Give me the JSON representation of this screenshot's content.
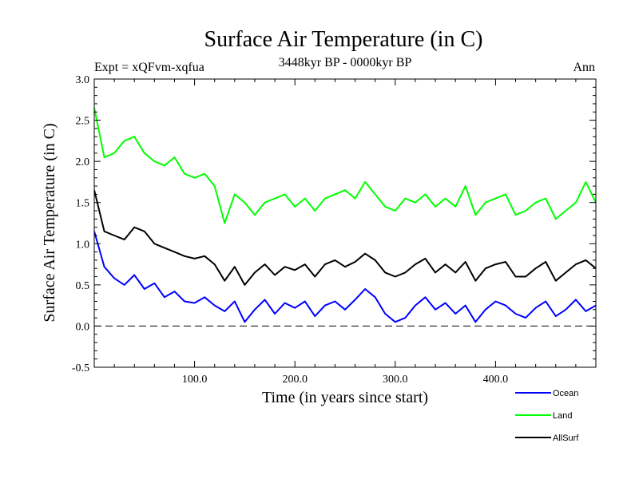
{
  "chart_data": {
    "type": "line",
    "title": "Surface Air Temperature (in C)",
    "subtitle": "3448kyr BP - 0000kyr BP",
    "experiment": "Expt = xQFvm-xqfua",
    "period": "Ann",
    "xlabel": "Time (in years since start)",
    "ylabel": "Surface Air Temperature (in C)",
    "xlim": [
      0,
      500
    ],
    "ylim": [
      -0.5,
      3.0
    ],
    "xticks": [
      100,
      200,
      300,
      400
    ],
    "xtick_labels": [
      "100.0",
      "200.0",
      "300.0",
      "400.0"
    ],
    "yticks": [
      -0.5,
      0.0,
      0.5,
      1.0,
      1.5,
      2.0,
      2.5,
      3.0
    ],
    "ytick_labels": [
      "-0.5",
      "0.0",
      "0.5",
      "1.0",
      "1.5",
      "2.0",
      "2.5",
      "3.0"
    ],
    "reference_line": {
      "y": 0.0,
      "style": "dashed"
    },
    "legend_position": "bottom-right",
    "series": [
      {
        "name": "Ocean",
        "color": "#0000ff",
        "x": [
          0,
          10,
          20,
          30,
          40,
          50,
          60,
          70,
          80,
          90,
          100,
          110,
          120,
          130,
          140,
          150,
          160,
          170,
          180,
          190,
          200,
          210,
          220,
          230,
          240,
          250,
          260,
          270,
          280,
          290,
          300,
          310,
          320,
          330,
          340,
          350,
          360,
          370,
          380,
          390,
          400,
          410,
          420,
          430,
          440,
          450,
          460,
          470,
          480,
          490,
          500
        ],
        "values": [
          1.15,
          0.72,
          0.58,
          0.5,
          0.62,
          0.45,
          0.52,
          0.35,
          0.42,
          0.3,
          0.28,
          0.35,
          0.25,
          0.18,
          0.3,
          0.05,
          0.2,
          0.32,
          0.15,
          0.28,
          0.22,
          0.3,
          0.12,
          0.25,
          0.3,
          0.2,
          0.32,
          0.45,
          0.35,
          0.15,
          0.05,
          0.1,
          0.25,
          0.35,
          0.2,
          0.28,
          0.15,
          0.25,
          0.05,
          0.2,
          0.3,
          0.25,
          0.15,
          0.1,
          0.22,
          0.3,
          0.12,
          0.2,
          0.32,
          0.18,
          0.25
        ]
      },
      {
        "name": "Land",
        "color": "#00ff00",
        "x": [
          0,
          10,
          20,
          30,
          40,
          50,
          60,
          70,
          80,
          90,
          100,
          110,
          120,
          130,
          140,
          150,
          160,
          170,
          180,
          190,
          200,
          210,
          220,
          230,
          240,
          250,
          260,
          270,
          280,
          290,
          300,
          310,
          320,
          330,
          340,
          350,
          360,
          370,
          380,
          390,
          400,
          410,
          420,
          430,
          440,
          450,
          460,
          470,
          480,
          490,
          500
        ],
        "values": [
          2.65,
          2.05,
          2.1,
          2.25,
          2.3,
          2.1,
          2.0,
          1.95,
          2.05,
          1.85,
          1.8,
          1.85,
          1.7,
          1.25,
          1.6,
          1.5,
          1.35,
          1.5,
          1.55,
          1.6,
          1.45,
          1.55,
          1.4,
          1.55,
          1.6,
          1.65,
          1.55,
          1.75,
          1.6,
          1.45,
          1.4,
          1.55,
          1.5,
          1.6,
          1.45,
          1.55,
          1.45,
          1.7,
          1.35,
          1.5,
          1.55,
          1.6,
          1.35,
          1.4,
          1.5,
          1.55,
          1.3,
          1.4,
          1.5,
          1.75,
          1.5
        ]
      },
      {
        "name": "AllSurf",
        "color": "#000000",
        "x": [
          0,
          10,
          20,
          30,
          40,
          50,
          60,
          70,
          80,
          90,
          100,
          110,
          120,
          130,
          140,
          150,
          160,
          170,
          180,
          190,
          200,
          210,
          220,
          230,
          240,
          250,
          260,
          270,
          280,
          290,
          300,
          310,
          320,
          330,
          340,
          350,
          360,
          370,
          380,
          390,
          400,
          410,
          420,
          430,
          440,
          450,
          460,
          470,
          480,
          490,
          500
        ],
        "values": [
          1.65,
          1.15,
          1.1,
          1.05,
          1.2,
          1.15,
          1.0,
          0.95,
          0.9,
          0.85,
          0.82,
          0.85,
          0.75,
          0.55,
          0.72,
          0.5,
          0.65,
          0.75,
          0.62,
          0.72,
          0.68,
          0.75,
          0.6,
          0.75,
          0.8,
          0.72,
          0.78,
          0.88,
          0.8,
          0.65,
          0.6,
          0.65,
          0.75,
          0.82,
          0.65,
          0.75,
          0.65,
          0.78,
          0.55,
          0.7,
          0.75,
          0.78,
          0.6,
          0.6,
          0.7,
          0.78,
          0.55,
          0.65,
          0.75,
          0.8,
          0.7
        ]
      }
    ]
  }
}
